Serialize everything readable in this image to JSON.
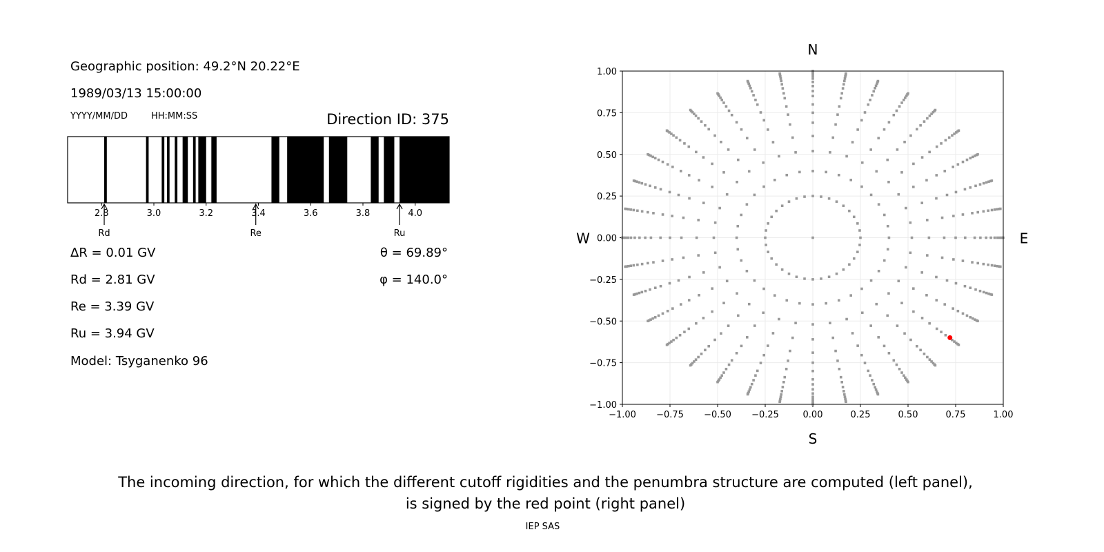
{
  "left_panel": {
    "position": "Geographic position: 49.2°N 20.22°E",
    "datetime": "1989/03/13 15:00:00",
    "date_format": "YYYY/MM/DD",
    "time_format": "HH:MM:SS",
    "direction_id": "Direction ID: 375",
    "delta_r": "ΔR = 0.01 GV",
    "rd": "Rd = 2.81 GV",
    "re": "Re = 3.39 GV",
    "ru": "Ru = 3.94 GV",
    "model": "Model: Tsyganenko 96",
    "theta": "θ = 69.89°",
    "phi": "φ = 140.0°"
  },
  "chart_data": [
    {
      "type": "bar",
      "xlim": [
        2.67,
        4.13
      ],
      "xticks": [
        "2.8",
        "3.0",
        "3.2",
        "3.4",
        "3.6",
        "3.8",
        "4.0"
      ],
      "forbidden_bands_GV": [
        [
          2.81,
          2.82
        ],
        [
          2.97,
          2.98
        ],
        [
          3.03,
          3.04
        ],
        [
          3.05,
          3.06
        ],
        [
          3.08,
          3.09
        ],
        [
          3.11,
          3.13
        ],
        [
          3.15,
          3.16
        ],
        [
          3.17,
          3.2
        ],
        [
          3.22,
          3.24
        ],
        [
          3.45,
          3.48
        ],
        [
          3.51,
          3.65
        ],
        [
          3.67,
          3.74
        ],
        [
          3.83,
          3.86
        ],
        [
          3.88,
          3.92
        ],
        [
          3.94,
          4.13
        ]
      ],
      "markers": [
        {
          "label": "Rd",
          "value": 2.81
        },
        {
          "label": "Re",
          "value": 3.39
        },
        {
          "label": "Ru",
          "value": 3.94
        }
      ],
      "band_color": "#000000"
    },
    {
      "type": "scatter",
      "xlim": [
        -1,
        1
      ],
      "ylim": [
        -1,
        1
      ],
      "xticks": [
        "−1.00",
        "−0.75",
        "−0.50",
        "−0.25",
        "0.00",
        "0.25",
        "0.50",
        "0.75",
        "1.00"
      ],
      "yticks": [
        "−1.00",
        "−0.75",
        "−0.50",
        "−0.25",
        "0.00",
        "0.25",
        "0.50",
        "0.75",
        "1.00"
      ],
      "grid": true,
      "compass": {
        "top": "N",
        "bottom": "S",
        "left": "W",
        "right": "E"
      },
      "grid_azimuths_step_deg": 10,
      "grid_radii": [
        0.25,
        0.4,
        0.52,
        0.61,
        0.69,
        0.75,
        0.8,
        0.85,
        0.88,
        0.91,
        0.935,
        0.955,
        0.97,
        0.983,
        0.993,
        1.0
      ],
      "center_point": [
        0,
        0
      ],
      "point_color": "#999999",
      "selected_point": {
        "x": 0.72,
        "y": -0.6,
        "color": "#ff0000"
      }
    }
  ],
  "caption": {
    "line1": "The incoming direction, for which the different cutoff rigidities and the penumbra structure are computed (left panel),",
    "line2": "is signed by the red point (right panel)",
    "credit": "IEP SAS"
  }
}
